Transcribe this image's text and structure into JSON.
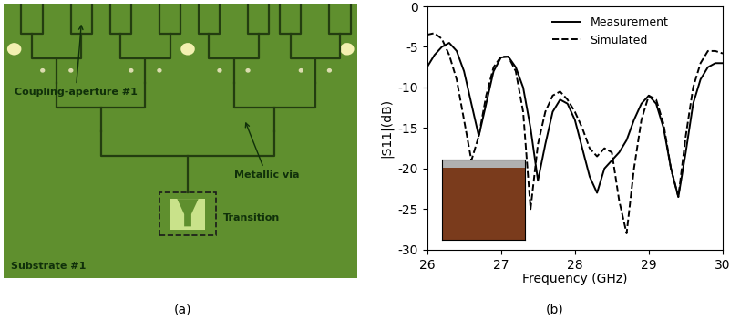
{
  "captions": [
    "(a)",
    "(b)"
  ],
  "diagram": {
    "labels": {
      "aperture": "Coupling-aperture #1",
      "via": "Metallic via",
      "transition": "Transition",
      "substrate": "Substrate #1"
    }
  },
  "chart_data": {
    "type": "line",
    "x_label": "Frequency (GHz)",
    "y_label": "|S11|(dB)",
    "x": [
      26.0,
      26.1,
      26.2,
      26.3,
      26.4,
      26.5,
      26.6,
      26.7,
      26.8,
      26.9,
      27.0,
      27.1,
      27.2,
      27.3,
      27.4,
      27.5,
      27.6,
      27.7,
      27.8,
      27.9,
      28.0,
      28.1,
      28.2,
      28.3,
      28.4,
      28.5,
      28.6,
      28.7,
      28.8,
      28.9,
      29.0,
      29.1,
      29.2,
      29.3,
      29.4,
      29.5,
      29.6,
      29.7,
      29.8,
      29.9,
      30.0
    ],
    "series": [
      {
        "name": "Measurement",
        "color": "#000000",
        "line_style": "solid",
        "values": [
          -7.5,
          -6,
          -5,
          -4.5,
          -5.5,
          -8,
          -12,
          -16,
          -12,
          -8,
          -6.3,
          -6.2,
          -7.5,
          -10,
          -15,
          -21.5,
          -17,
          -13,
          -11.5,
          -12,
          -14,
          -17.5,
          -21,
          -23,
          -20,
          -19,
          -18,
          -16.5,
          -14,
          -12,
          -11,
          -12,
          -15,
          -20,
          -23.5,
          -18,
          -12,
          -9,
          -7.5,
          -7,
          -7
        ]
      },
      {
        "name": "Simulated",
        "color": "#000000",
        "line_style": "dashed",
        "values": [
          -3.5,
          -3.3,
          -4,
          -6,
          -9,
          -14,
          -19,
          -16,
          -11,
          -7.5,
          -6.2,
          -6.2,
          -8,
          -13,
          -25,
          -17,
          -13,
          -11,
          -10.5,
          -11.5,
          -13,
          -15,
          -17.5,
          -18.5,
          -17.5,
          -18,
          -24,
          -28,
          -20,
          -14,
          -11,
          -11.5,
          -14.5,
          -20,
          -23.5,
          -16,
          -10,
          -7,
          -5.5,
          -5.5,
          -5.8
        ]
      }
    ],
    "xlim": [
      26,
      30
    ],
    "xticks": [
      26,
      27,
      28,
      29,
      30
    ],
    "ylim": [
      -30,
      0
    ],
    "yticks": [
      -30,
      -25,
      -20,
      -15,
      -10,
      -5,
      0
    ],
    "legend": "upper center",
    "grid": false
  }
}
